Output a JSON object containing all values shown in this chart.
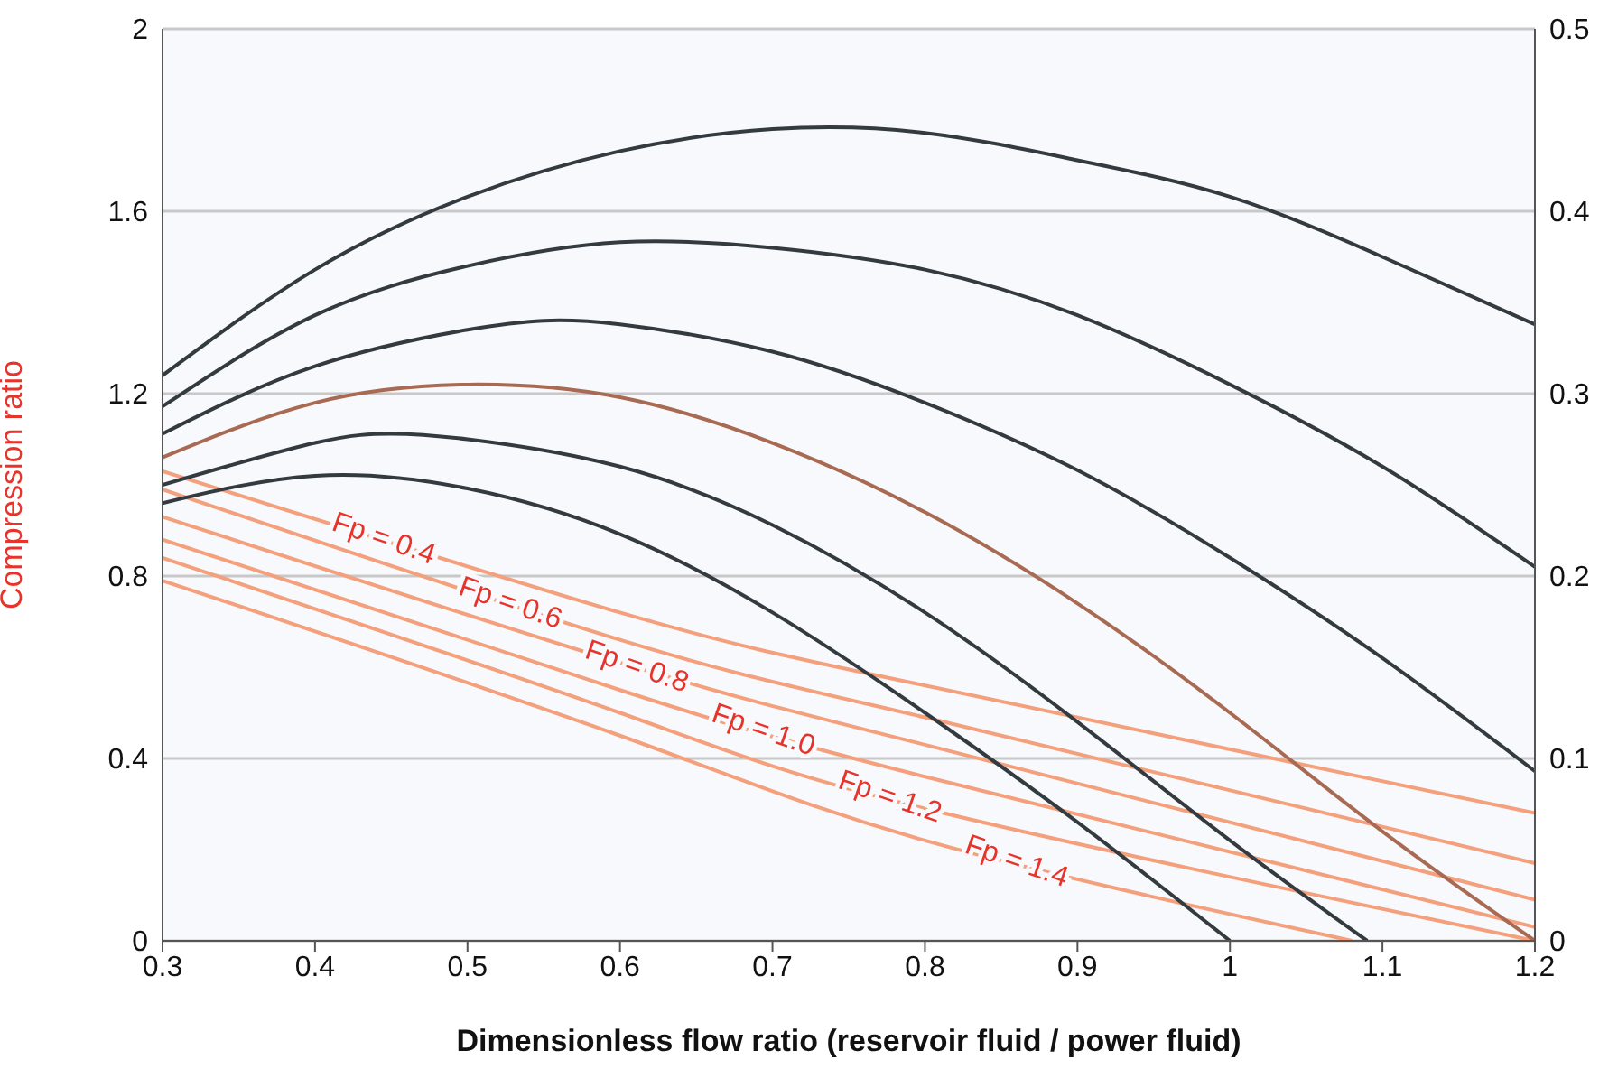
{
  "chart_data": {
    "type": "line",
    "xlabel": "Dimensionless flow ratio (reservoir fluid / power fluid)",
    "ylabel": "Compression ratio",
    "xlim": [
      0.3,
      1.2
    ],
    "xticks": [
      0.3,
      0.4,
      0.5,
      0.6,
      0.7,
      0.8,
      0.9,
      {
        "value": 1,
        "label": "1"
      },
      1.1,
      1.2
    ],
    "ylim": [
      0,
      2
    ],
    "yticks": [
      0,
      0.4,
      0.8,
      1.2,
      1.6,
      2
    ],
    "y2lim": [
      0,
      0.5
    ],
    "y2ticks": [
      0,
      0.1,
      0.2,
      0.3,
      0.4,
      0.5
    ],
    "grid": "y",
    "legend": false,
    "marker": "none",
    "line_style": "solid",
    "series": [
      {
        "name": "Fp = 0.4",
        "color": "#f4a07c",
        "x": [
          0.3,
          0.6,
          0.8,
          1.2
        ],
        "values": [
          1.03,
          0.72,
          0.56,
          0.28
        ]
      },
      {
        "name": "Fp = 0.6",
        "color": "#f4a07c",
        "x": [
          0.3,
          0.6,
          0.8,
          1.2
        ],
        "values": [
          0.99,
          0.66,
          0.49,
          0.17
        ]
      },
      {
        "name": "Fp = 0.8",
        "color": "#f4a07c",
        "x": [
          0.3,
          0.6,
          0.8,
          1.2
        ],
        "values": [
          0.93,
          0.61,
          0.43,
          0.09
        ]
      },
      {
        "name": "Fp = 1.0",
        "color": "#f4a07c",
        "x": [
          0.3,
          0.6,
          0.8,
          1.2
        ],
        "values": [
          0.88,
          0.55,
          0.36,
          0.03
        ]
      },
      {
        "name": "Fp = 1.2",
        "color": "#f4a07c",
        "x": [
          0.3,
          0.6,
          0.8,
          1.2
        ],
        "values": [
          0.84,
          0.5,
          0.29,
          0
        ]
      },
      {
        "name": "Fp = 1.4",
        "color": "#f4a07c",
        "x": [
          0.3,
          0.6,
          0.8,
          1.08
        ],
        "values": [
          0.79,
          0.45,
          0.22,
          0
        ]
      },
      {
        "color": "#333b40",
        "axis": "y2",
        "x": [
          0.3,
          0.4,
          0.5,
          0.6,
          0.7,
          0.8,
          0.9,
          1.0,
          1.1,
          1.2
        ],
        "values": [
          0.31,
          0.368,
          0.408,
          0.433,
          0.445,
          0.443,
          0.428,
          0.408,
          0.375,
          0.338
        ]
      },
      {
        "color": "#333b40",
        "axis": "y2",
        "x": [
          0.3,
          0.4,
          0.5,
          0.6,
          0.7,
          0.8,
          0.9,
          1.0,
          1.1,
          1.2
        ],
        "values": [
          0.293,
          0.343,
          0.37,
          0.383,
          0.38,
          0.368,
          0.343,
          0.305,
          0.26,
          0.205
        ]
      },
      {
        "color": "#333b40",
        "axis": "y2",
        "x": [
          0.3,
          0.4,
          0.5,
          0.55,
          0.6,
          0.7,
          0.8,
          0.9,
          1.0,
          1.1,
          1.2
        ],
        "values": [
          0.278,
          0.315,
          0.335,
          0.34,
          0.338,
          0.323,
          0.295,
          0.258,
          0.21,
          0.155,
          0.093
        ]
      },
      {
        "color": "#a86a52",
        "axis": "y2",
        "x": [
          0.3,
          0.4,
          0.5,
          0.6,
          0.7,
          0.8,
          0.9,
          1.0,
          1.1,
          1.2
        ],
        "values": [
          0.265,
          0.295,
          0.305,
          0.298,
          0.273,
          0.235,
          0.185,
          0.125,
          0.06,
          0
        ]
      },
      {
        "color": "#333b40",
        "axis": "y2",
        "x": [
          0.3,
          0.4,
          0.45,
          0.5,
          0.6,
          0.7,
          0.8,
          0.9,
          1.0,
          1.09
        ],
        "values": [
          0.25,
          0.273,
          0.278,
          0.275,
          0.26,
          0.228,
          0.18,
          0.12,
          0.055,
          0
        ]
      },
      {
        "color": "#333b40",
        "axis": "y2",
        "x": [
          0.3,
          0.4,
          0.5,
          0.6,
          0.7,
          0.8,
          0.9,
          1.0
        ],
        "values": [
          0.24,
          0.255,
          0.248,
          0.223,
          0.18,
          0.125,
          0.065,
          0
        ]
      }
    ]
  }
}
